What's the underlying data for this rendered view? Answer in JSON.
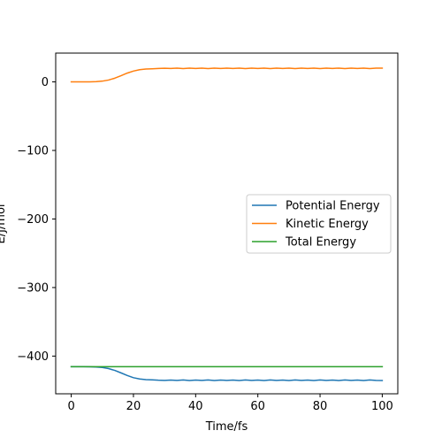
{
  "chart_data": {
    "type": "line",
    "title": "",
    "xlabel": "Time/fs",
    "ylabel": "E/J/mol",
    "xlim": [
      -5,
      105
    ],
    "ylim": [
      -455,
      42
    ],
    "xticks": [
      0,
      20,
      40,
      60,
      80,
      100
    ],
    "yticks": [
      0,
      -100,
      -200,
      -300,
      -400
    ],
    "grid": false,
    "legend_position": "center-right",
    "x": [
      0,
      2,
      4,
      6,
      8,
      10,
      12,
      14,
      16,
      18,
      20,
      22,
      24,
      26,
      28,
      30,
      32,
      34,
      36,
      38,
      40,
      42,
      44,
      46,
      48,
      50,
      52,
      54,
      56,
      58,
      60,
      62,
      64,
      66,
      68,
      70,
      72,
      74,
      76,
      78,
      80,
      82,
      84,
      86,
      88,
      90,
      92,
      94,
      96,
      98,
      100
    ],
    "series": [
      {
        "name": "Potential Energy",
        "color": "#1f77b4",
        "values": [
          -415.5,
          -415.5,
          -415.5,
          -415.6,
          -415.9,
          -416.6,
          -418.2,
          -420.9,
          -424.5,
          -428.3,
          -431.5,
          -433.4,
          -434.3,
          -434.7,
          -435.2,
          -435.4,
          -435.0,
          -435.5,
          -434.9,
          -435.6,
          -435.0,
          -435.5,
          -434.9,
          -435.6,
          -435.0,
          -435.5,
          -435.0,
          -435.6,
          -434.9,
          -435.5,
          -435.0,
          -435.6,
          -434.9,
          -435.5,
          -435.0,
          -435.6,
          -434.9,
          -435.5,
          -435.0,
          -435.6,
          -434.9,
          -435.5,
          -435.0,
          -435.6,
          -434.9,
          -435.5,
          -435.0,
          -435.6,
          -434.9,
          -435.5,
          -435.6
        ]
      },
      {
        "name": "Kinetic Energy",
        "color": "#ff7f0e",
        "values": [
          0.0,
          0.0,
          0.0,
          0.1,
          0.4,
          1.1,
          2.7,
          5.4,
          9.0,
          12.8,
          15.8,
          17.8,
          18.7,
          19.1,
          19.6,
          19.9,
          19.5,
          20.0,
          19.4,
          20.1,
          19.5,
          20.0,
          19.4,
          20.1,
          19.5,
          20.0,
          19.5,
          20.1,
          19.4,
          20.0,
          19.5,
          20.1,
          19.4,
          20.0,
          19.5,
          20.1,
          19.4,
          20.0,
          19.5,
          20.1,
          19.4,
          20.0,
          19.5,
          20.1,
          19.4,
          20.0,
          19.5,
          20.1,
          19.4,
          20.0,
          20.1
        ]
      },
      {
        "name": "Total Energy",
        "color": "#2ca02c",
        "values": [
          -415.5,
          -415.5,
          -415.5,
          -415.5,
          -415.5,
          -415.5,
          -415.5,
          -415.5,
          -415.5,
          -415.5,
          -415.5,
          -415.5,
          -415.5,
          -415.5,
          -415.5,
          -415.5,
          -415.5,
          -415.5,
          -415.5,
          -415.5,
          -415.5,
          -415.5,
          -415.5,
          -415.5,
          -415.5,
          -415.5,
          -415.5,
          -415.5,
          -415.5,
          -415.5,
          -415.5,
          -415.5,
          -415.5,
          -415.5,
          -415.5,
          -415.5,
          -415.5,
          -415.5,
          -415.5,
          -415.5,
          -415.5,
          -415.5,
          -415.5,
          -415.5,
          -415.5,
          -415.5,
          -415.5,
          -415.5,
          -415.5,
          -415.5,
          -415.5
        ]
      }
    ]
  }
}
